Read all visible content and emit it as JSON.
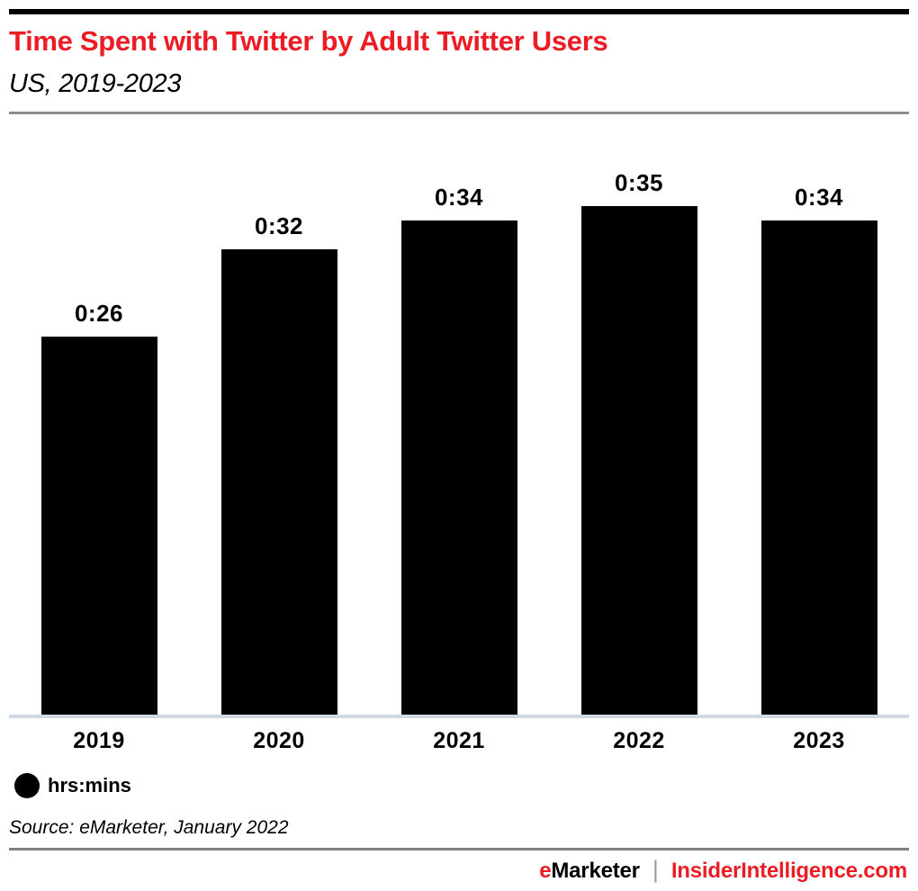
{
  "header": {
    "title": "Time Spent with Twitter by Adult Twitter Users",
    "subtitle": "US, 2019-2023"
  },
  "chart_data": {
    "type": "bar",
    "title": "Time Spent with Twitter by Adult Twitter Users",
    "subtitle": "US, 2019-2023",
    "categories": [
      "2019",
      "2020",
      "2021",
      "2022",
      "2023"
    ],
    "values": [
      26,
      32,
      34,
      35,
      34
    ],
    "value_labels": [
      "0:26",
      "0:32",
      "0:34",
      "0:35",
      "0:34"
    ],
    "unit": "hrs:mins",
    "xlabel": "",
    "ylabel": "",
    "ylim": [
      0,
      35
    ],
    "grid": false,
    "bar_color": "#000000",
    "legend_position": "bottom-left"
  },
  "legend": {
    "marker": "circle-icon",
    "marker_color": "#000000",
    "label": "hrs:mins"
  },
  "source": "Source: eMarketer, January 2022",
  "footer": {
    "brand_e": "e",
    "brand_rest": "Marketer",
    "separator": "|",
    "site": "InsiderIntelligence.com"
  },
  "colors": {
    "accent_red": "#ec1c24",
    "bar_black": "#000000",
    "axis_line": "#cfd8e3",
    "header_divider": "#8c8c8c",
    "footer_divider": "#7f7f7f",
    "separator_gray": "#9aa0a6"
  }
}
